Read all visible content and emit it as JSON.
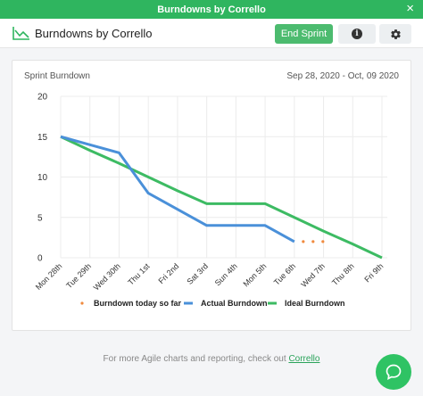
{
  "window": {
    "title": "Burndowns by Corrello",
    "close_glyph": "×"
  },
  "header": {
    "logo_icon": "chart-line-icon",
    "app_name": "Burndowns by Corrello",
    "end_sprint_label": "End Sprint",
    "info_icon": "info-icon",
    "settings_icon": "gear-icon"
  },
  "card": {
    "title": "Sprint Burndown",
    "date_range": "Sep 28, 2020 - Oct, 09 2020"
  },
  "chart_data": {
    "type": "line",
    "title": "Sprint Burndown",
    "categories": [
      "Mon 28th",
      "Tue 29th",
      "Wed 30th",
      "Thu 1st",
      "Fri 2nd",
      "Sat 3rd",
      "Sun 4th",
      "Mon 5th",
      "Tue 6th",
      "Wed 7th",
      "Thu 8th",
      "Fri 9th"
    ],
    "ylim": [
      0,
      20
    ],
    "yticks": [
      "0",
      "5",
      "10",
      "15",
      "20"
    ],
    "grid": true,
    "legend_position": "bottom",
    "series": [
      {
        "name": "Burndown today so far",
        "style": "dotted",
        "color": "#f08a3e",
        "values": [
          null,
          null,
          null,
          null,
          null,
          null,
          null,
          null,
          2,
          2,
          null,
          null
        ]
      },
      {
        "name": "Actual Burndown",
        "style": "solid",
        "color": "#4a90d9",
        "values": [
          15,
          14,
          13,
          8,
          6,
          4,
          4,
          4,
          2,
          null,
          null,
          null
        ]
      },
      {
        "name": "Ideal Burndown",
        "style": "solid",
        "color": "#3dbb63",
        "values": [
          15,
          13.3,
          11.7,
          10,
          8.3,
          6.7,
          6.7,
          6.7,
          5,
          3.3,
          1.7,
          0
        ]
      }
    ]
  },
  "footer": {
    "text": "For more Agile charts and reporting, check out ",
    "link_label": "Corrello"
  },
  "chat": {
    "icon": "chat-bubble-icon"
  }
}
